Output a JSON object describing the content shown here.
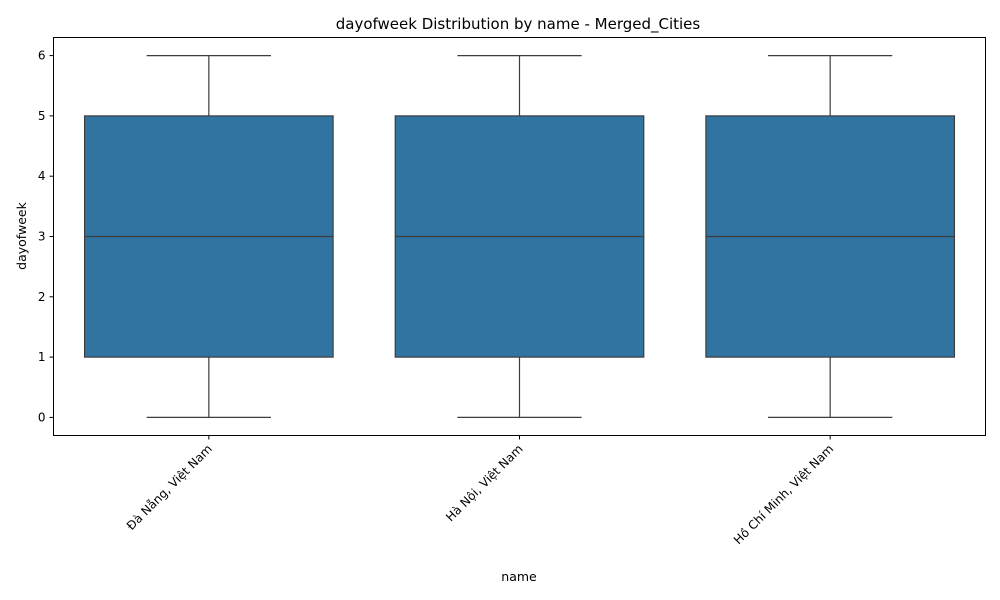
{
  "chart_data": {
    "type": "box",
    "title": "dayofweek Distribution by name - Merged_Cities",
    "xlabel": "name",
    "ylabel": "dayofweek",
    "ylim": [
      -0.3,
      6.3
    ],
    "yticks": [
      0,
      1,
      2,
      3,
      4,
      5,
      6
    ],
    "categories": [
      "Đà Nẵng, Việt Nam",
      "Hà Nội, Việt Nam",
      "Hồ Chí Minh, Việt Nam"
    ],
    "boxes": [
      {
        "min": 0,
        "q1": 1,
        "median": 3,
        "q3": 5,
        "max": 6
      },
      {
        "min": 0,
        "q1": 1,
        "median": 3,
        "q3": 5,
        "max": 6
      },
      {
        "min": 0,
        "q1": 1,
        "median": 3,
        "q3": 5,
        "max": 6
      }
    ],
    "box_color": "#3274a1",
    "line_color": "#3d3d3d",
    "grid": false
  }
}
